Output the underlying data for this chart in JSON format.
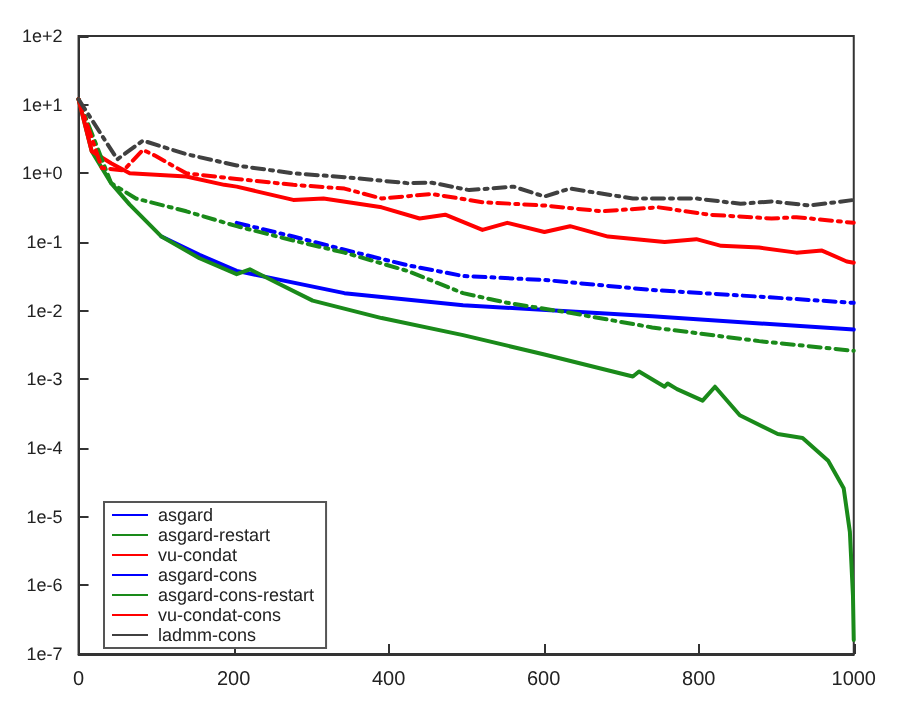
{
  "chart_data": {
    "type": "line",
    "log": "y",
    "legend": "bottom left",
    "grid": false,
    "marker": "none",
    "xlim": [
      0,
      1000
    ],
    "xticks": [
      0,
      200,
      400,
      600,
      800,
      1000
    ],
    "ylim": [
      1e-07,
      100
    ],
    "yticks": [
      {
        "value": 1e-07,
        "label": "1e-7"
      },
      {
        "value": 1e-06,
        "label": "1e-6"
      },
      {
        "value": 1e-05,
        "label": "1e-5"
      },
      {
        "value": 0.0001,
        "label": "1e-4"
      },
      {
        "value": 0.001,
        "label": "1e-3"
      },
      {
        "value": 0.01,
        "label": "1e-2"
      },
      {
        "value": 0.1,
        "label": "1e-1"
      },
      {
        "value": 1,
        "label": "1e+0"
      },
      {
        "value": 10,
        "label": "1e+1"
      },
      {
        "value": 100,
        "label": "1e+2"
      }
    ],
    "series": [
      {
        "name": "asgard",
        "color": "#0000ff",
        "line_style": "solid",
        "x": [
          107,
          156,
          204,
          343,
          496,
          740,
          1000
        ],
        "values": [
          0.12,
          0.065,
          0.038,
          0.018,
          0.012,
          0.0083,
          0.0053
        ]
      },
      {
        "name": "asgard-restart",
        "color": "#1a8a1a",
        "line_style": "solid",
        "x": [
          0,
          17,
          42,
          66,
          107,
          156,
          204,
          221,
          302,
          391,
          496,
          601,
          715,
          723,
          756,
          760,
          772,
          805,
          821,
          853,
          902,
          934,
          967,
          987,
          995,
          999,
          1000
        ],
        "values": [
          12,
          2.1,
          0.72,
          0.35,
          0.12,
          0.058,
          0.034,
          0.04,
          0.014,
          0.0078,
          0.0044,
          0.0023,
          0.0011,
          0.0013,
          0.00078,
          0.00087,
          0.00072,
          0.00049,
          0.00078,
          0.0003,
          0.00016,
          0.00014,
          6.5e-05,
          2.6e-05,
          6e-06,
          7e-07,
          1.6e-07
        ]
      },
      {
        "name": "vu-condat",
        "color": "#ff0000",
        "line_style": "solid",
        "x": [
          0,
          17,
          42,
          66,
          139,
          188,
          204,
          277,
          316,
          391,
          440,
          473,
          521,
          553,
          601,
          634,
          683,
          756,
          797,
          829,
          878,
          926,
          959,
          991,
          1000
        ],
        "values": [
          12,
          2.1,
          1.4,
          1.0,
          0.9,
          0.68,
          0.64,
          0.41,
          0.43,
          0.32,
          0.22,
          0.25,
          0.15,
          0.19,
          0.14,
          0.17,
          0.12,
          0.1,
          0.11,
          0.088,
          0.083,
          0.07,
          0.075,
          0.052,
          0.05
        ]
      },
      {
        "name": "asgard-cons",
        "color": "#0000ff",
        "line_style": "dashed",
        "x": [
          204,
          277,
          343,
          424,
          496,
          601,
          740,
          878,
          1000
        ],
        "values": [
          0.19,
          0.12,
          0.077,
          0.046,
          0.032,
          0.028,
          0.02,
          0.016,
          0.013
        ]
      },
      {
        "name": "asgard-cons-restart",
        "color": "#1a8a1a",
        "line_style": "dashed",
        "x": [
          0,
          42,
          74,
          139,
          204,
          277,
          343,
          424,
          496,
          553,
          634,
          740,
          878,
          1000
        ],
        "values": [
          12,
          0.72,
          0.43,
          0.28,
          0.17,
          0.105,
          0.07,
          0.038,
          0.018,
          0.013,
          0.0093,
          0.0057,
          0.0036,
          0.0026
        ]
      },
      {
        "name": "vu-condat-cons",
        "color": "#ff0000",
        "line_style": "dashed",
        "x": [
          0,
          30,
          58,
          83,
          99,
          139,
          204,
          277,
          343,
          391,
          456,
          521,
          601,
          675,
          748,
          813,
          894,
          926,
          1000
        ],
        "values": [
          12,
          1.2,
          1.1,
          2.2,
          1.8,
          1.0,
          0.83,
          0.68,
          0.6,
          0.43,
          0.5,
          0.38,
          0.34,
          0.28,
          0.32,
          0.25,
          0.22,
          0.23,
          0.19
        ]
      },
      {
        "name": "ladmm-cons",
        "color": "#404040",
        "line_style": "dashed",
        "x": [
          0,
          50,
          83,
          139,
          204,
          277,
          343,
          424,
          456,
          504,
          561,
          601,
          634,
          715,
          797,
          854,
          894,
          943,
          1000
        ],
        "values": [
          12,
          1.6,
          3.0,
          1.9,
          1.3,
          1.0,
          0.88,
          0.72,
          0.73,
          0.57,
          0.64,
          0.46,
          0.6,
          0.43,
          0.43,
          0.36,
          0.39,
          0.34,
          0.41
        ]
      }
    ]
  }
}
